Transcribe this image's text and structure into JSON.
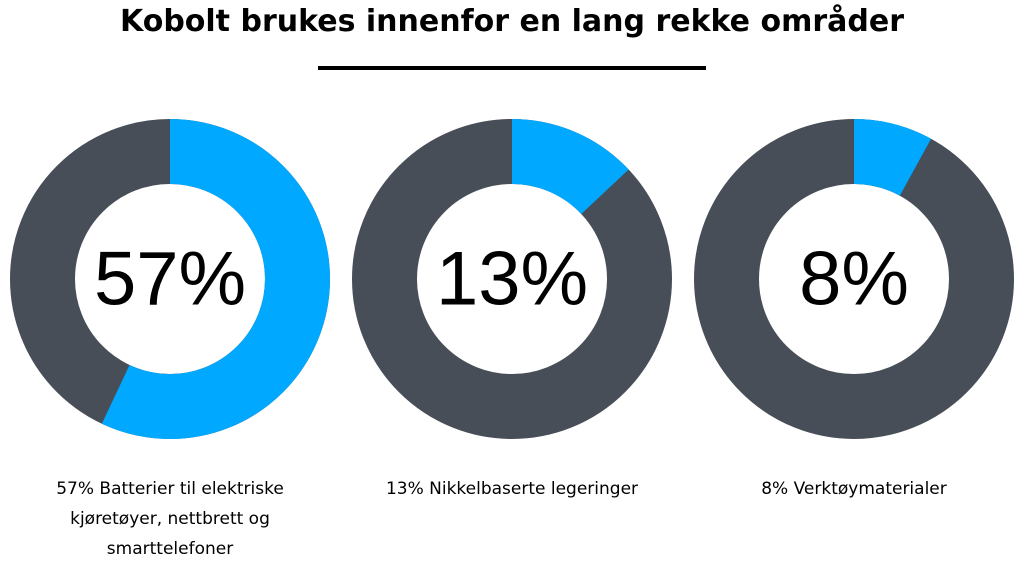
{
  "title": "Kobolt brukes innenfor en lang rekke områder",
  "chart_data": [
    {
      "type": "donut",
      "values": [
        57
      ],
      "value_labels": [
        "57%"
      ],
      "ylim": [
        0,
        100
      ],
      "color": "#00a8ff",
      "track_color": "#484e57",
      "caption": "57% Batterier til elektriske kjøretøyer, nettbrett og smarttelefoner"
    },
    {
      "type": "donut",
      "values": [
        13
      ],
      "value_labels": [
        "13%"
      ],
      "ylim": [
        0,
        100
      ],
      "color": "#00a8ff",
      "track_color": "#484e57",
      "caption": "13% Nikkelbaserte legeringer"
    },
    {
      "type": "donut",
      "values": [
        8
      ],
      "value_labels": [
        "8%"
      ],
      "ylim": [
        0,
        100
      ],
      "color": "#00a8ff",
      "track_color": "#484e57",
      "caption": "8% Verktøymaterialer"
    }
  ]
}
